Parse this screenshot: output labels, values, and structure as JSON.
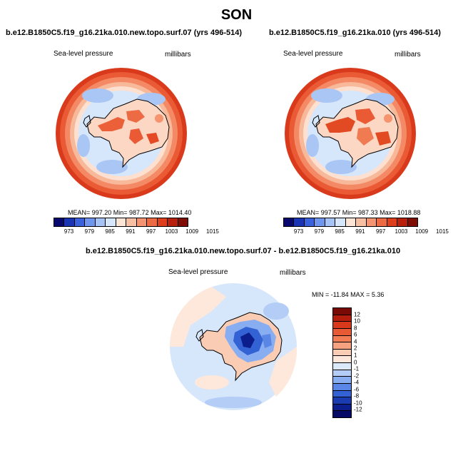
{
  "season": "SON",
  "panels": [
    {
      "title": "b.e12.B1850C5.f19_g16.21ka.010.new.topo.surf.07 (yrs 496-514)",
      "left_label": "Sea-level pressure",
      "right_label": "millibars",
      "stats": "MEAN= 997.20  Min= 987.72  Max= 1014.40"
    },
    {
      "title": "b.e12.B1850C5.f19_g16.21ka.010 (yrs 496-514)",
      "left_label": "Sea-level pressure",
      "right_label": "millibars",
      "stats": "MEAN= 997.57  Min= 987.33  Max= 1018.88"
    }
  ],
  "abs_colorbar": {
    "colors": [
      "#08086e",
      "#1a35b4",
      "#3a62dc",
      "#6e96ee",
      "#a6c3f6",
      "#d6e6fb",
      "#fde5d6",
      "#f9bfa2",
      "#f59472",
      "#ec6a44",
      "#de3e1c",
      "#b8200d",
      "#7e0d06"
    ],
    "labels": [
      "973",
      "979",
      "985",
      "991",
      "997",
      "1003",
      "1009",
      "1015"
    ]
  },
  "diff": {
    "title": "b.e12.B1850C5.f19_g16.21ka.010.new.topo.surf.07 - b.e12.B1850C5.f19_g16.21ka.010",
    "left_label": "Sea-level pressure",
    "right_label": "millibars",
    "minmax": "MIN = -11.84 MAX =   5.36"
  },
  "diff_colorbar": {
    "colors": [
      "#7a0a05",
      "#b51d0c",
      "#d8391a",
      "#e85a33",
      "#f27d55",
      "#f6a17f",
      "#fbccb4",
      "#fde8db",
      "#dbe9fb",
      "#b3cdf6",
      "#88adf0",
      "#5a87e6",
      "#3262d4",
      "#1a3cb0",
      "#0c1e8c",
      "#050a66"
    ],
    "labels": [
      "12",
      "10",
      "8",
      "6",
      "4",
      "2",
      "1",
      "0",
      "-1",
      "-2",
      "-4",
      "-6",
      "-8",
      "-10",
      "-12"
    ]
  }
}
